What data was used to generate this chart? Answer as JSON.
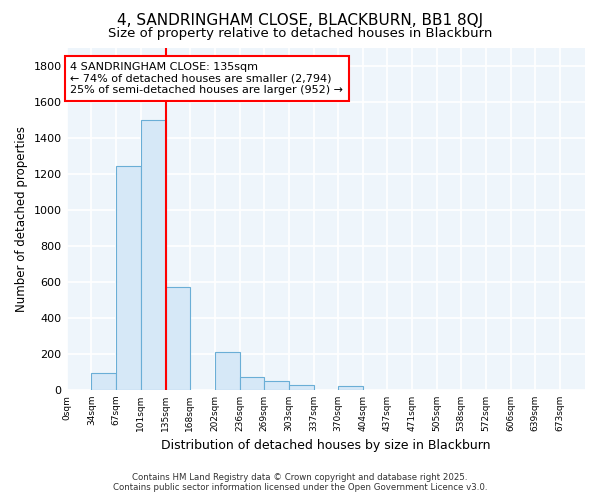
{
  "title_line1": "4, SANDRINGHAM CLOSE, BLACKBURN, BB1 8QJ",
  "title_line2": "Size of property relative to detached houses in Blackburn",
  "xlabel": "Distribution of detached houses by size in Blackburn",
  "ylabel": "Number of detached properties",
  "bin_edges": [
    0,
    34,
    67,
    101,
    135,
    168,
    202,
    236,
    269,
    303,
    337,
    370,
    404,
    437,
    471,
    505,
    538,
    572,
    606,
    639,
    673
  ],
  "bar_heights": [
    0,
    95,
    1240,
    1500,
    570,
    0,
    210,
    70,
    50,
    30,
    0,
    20,
    0,
    0,
    0,
    0,
    0,
    0,
    0,
    0
  ],
  "bar_color": "#d6e8f7",
  "bar_edge_color": "#6aaed6",
  "red_line_x": 135,
  "ylim": [
    0,
    1900
  ],
  "yticks": [
    0,
    200,
    400,
    600,
    800,
    1000,
    1200,
    1400,
    1600,
    1800
  ],
  "annotation_text": "4 SANDRINGHAM CLOSE: 135sqm\n← 74% of detached houses are smaller (2,794)\n25% of semi-detached houses are larger (952) →",
  "annotation_box_facecolor": "white",
  "annotation_box_edgecolor": "red",
  "footer_line1": "Contains HM Land Registry data © Crown copyright and database right 2025.",
  "footer_line2": "Contains public sector information licensed under the Open Government Licence v3.0.",
  "bg_color": "#ffffff",
  "plot_bg_color": "#eef5fb",
  "grid_color": "#ffffff",
  "title_fontsize": 11,
  "subtitle_fontsize": 9.5
}
